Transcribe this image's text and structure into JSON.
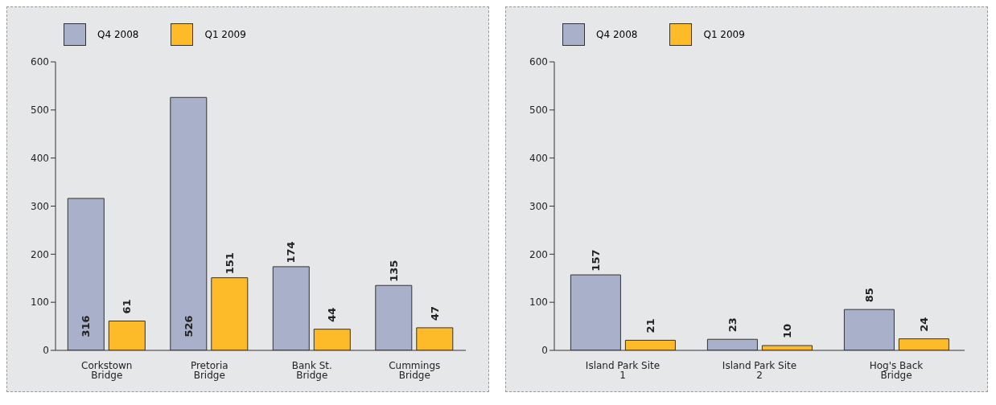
{
  "chart_data": [
    {
      "type": "bar",
      "categories": [
        "Corkstown Bridge",
        "Pretoria Bridge",
        "Bank St. Bridge",
        "Cummings Bridge"
      ],
      "series": [
        {
          "name": "Q4 2008",
          "color": "#a9b0c9",
          "values": [
            316,
            526,
            174,
            135
          ]
        },
        {
          "name": "Q1 2009",
          "color": "#fdbb2a",
          "values": [
            61,
            151,
            44,
            47
          ]
        }
      ],
      "ylim": [
        0,
        600
      ],
      "yticks": [
        0,
        100,
        200,
        300,
        400,
        500,
        600
      ],
      "grid": false,
      "legend": "top left",
      "data_labels": true
    },
    {
      "type": "bar",
      "categories": [
        "Island Park Site 1",
        "Island Park Site 2",
        "Hog's Back Bridge"
      ],
      "series": [
        {
          "name": "Q4 2008",
          "color": "#a9b0c9",
          "values": [
            157,
            23,
            85
          ]
        },
        {
          "name": "Q1 2009",
          "color": "#fdbb2a",
          "values": [
            21,
            10,
            24
          ]
        }
      ],
      "ylim": [
        0,
        600
      ],
      "yticks": [
        0,
        100,
        200,
        300,
        400,
        500,
        600
      ],
      "grid": false,
      "legend": "top left",
      "data_labels": true
    }
  ]
}
